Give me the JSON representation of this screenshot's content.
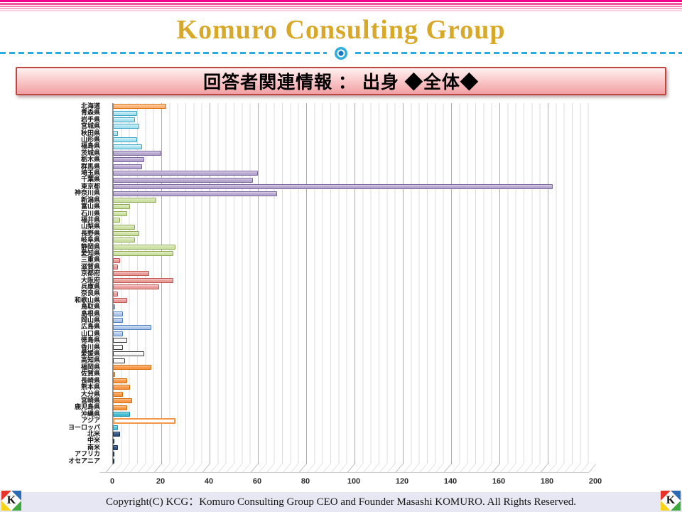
{
  "slide": {
    "title": "Komuro Consulting Group",
    "banner": "回答者関連情報 ： 出身 ◆全体◆",
    "footer": "Copyright(C)  KCG：Komuro Consulting Group  CEO and Founder  Masashi KOMURO. All Rights Reserved.",
    "logo_letter": "K"
  },
  "colors": {
    "title_gold": "#D8A828",
    "divider_cyan": "#2BABE2",
    "banner_border": "#BC4743",
    "stripes": [
      "#EC008C",
      "#F0549C",
      "#F47FB5",
      "#F8A8CE",
      "#FBD0E4"
    ],
    "footer_bg": "#E7E6F3"
  },
  "chart_data": {
    "type": "bar",
    "orientation": "horizontal",
    "title": "",
    "xlabel": "",
    "ylabel": "",
    "xlim": [
      0,
      200
    ],
    "x_ticks": [
      "0",
      "20",
      "40",
      "60",
      "80",
      "100",
      "120",
      "140",
      "160",
      "180",
      "200"
    ],
    "grid": "major every 20, minor every 3.33",
    "legend": "none",
    "groups": {
      "hokkaido": {
        "fill": "#FBB377",
        "light": "#FDDBB8",
        "border": "#E06F0E"
      },
      "tohoku": {
        "fill": "#A9E2F1",
        "light": "#DFF6FB",
        "border": "#38A3C1"
      },
      "kanto": {
        "fill": "#B5A6CE",
        "light": "#DCD2E8",
        "border": "#7A64A0"
      },
      "chubu": {
        "fill": "#CCE0A4",
        "light": "#EAF2D3",
        "border": "#8CA854"
      },
      "kinki": {
        "fill": "#E89B99",
        "light": "#F6CFCE",
        "border": "#C05552"
      },
      "chugoku": {
        "fill": "#ADC5E8",
        "light": "#D9E5F6",
        "border": "#4F81BD"
      },
      "shikoku": {
        "fill": "#F5F5F5",
        "light": "#FFFFFF",
        "border": "#3B3B3B"
      },
      "kyushu": {
        "fill": "#F79646",
        "light": "#FBC696",
        "border": "#D26A07"
      },
      "okinawa": {
        "fill": "#3FBCD2",
        "light": "#9ADFEA",
        "border": "#1F8FA8"
      },
      "asia": {
        "fill": "#FFFFFF",
        "light": "#FFFFFF",
        "border": "#F79646"
      },
      "europe": {
        "fill": "#4FC3DC",
        "light": "#A5E3EF",
        "border": "#2596B4"
      },
      "america": {
        "fill": "#30517F",
        "light": "#6D89AC",
        "border": "#1C3150"
      }
    },
    "categories": [
      {
        "label": "北海道",
        "value": 22,
        "group": "hokkaido"
      },
      {
        "label": "青森県",
        "value": 10,
        "group": "tohoku"
      },
      {
        "label": "岩手県",
        "value": 9,
        "group": "tohoku"
      },
      {
        "label": "宮城県",
        "value": 11,
        "group": "tohoku"
      },
      {
        "label": "秋田県",
        "value": 2,
        "group": "tohoku"
      },
      {
        "label": "山形県",
        "value": 10,
        "group": "tohoku"
      },
      {
        "label": "福島県",
        "value": 12,
        "group": "tohoku"
      },
      {
        "label": "茨城県",
        "value": 20,
        "group": "kanto"
      },
      {
        "label": "栃木県",
        "value": 13,
        "group": "kanto"
      },
      {
        "label": "群馬県",
        "value": 12,
        "group": "kanto"
      },
      {
        "label": "埼玉県",
        "value": 60,
        "group": "kanto"
      },
      {
        "label": "千葉県",
        "value": 58,
        "group": "kanto"
      },
      {
        "label": "東京都",
        "value": 182,
        "group": "kanto"
      },
      {
        "label": "神奈川県",
        "value": 68,
        "group": "kanto"
      },
      {
        "label": "新潟県",
        "value": 18,
        "group": "chubu"
      },
      {
        "label": "富山県",
        "value": 7,
        "group": "chubu"
      },
      {
        "label": "石川県",
        "value": 6,
        "group": "chubu"
      },
      {
        "label": "福井県",
        "value": 3,
        "group": "chubu"
      },
      {
        "label": "山梨県",
        "value": 9,
        "group": "chubu"
      },
      {
        "label": "長野県",
        "value": 11,
        "group": "chubu"
      },
      {
        "label": "岐阜県",
        "value": 9,
        "group": "chubu"
      },
      {
        "label": "静岡県",
        "value": 26,
        "group": "chubu"
      },
      {
        "label": "愛知県",
        "value": 25,
        "group": "chubu"
      },
      {
        "label": "三重県",
        "value": 3,
        "group": "kinki"
      },
      {
        "label": "滋賀県",
        "value": 2,
        "group": "kinki"
      },
      {
        "label": "京都府",
        "value": 15,
        "group": "kinki"
      },
      {
        "label": "大阪府",
        "value": 25,
        "group": "kinki"
      },
      {
        "label": "兵庫県",
        "value": 19,
        "group": "kinki"
      },
      {
        "label": "奈良県",
        "value": 2,
        "group": "kinki"
      },
      {
        "label": "和歌山県",
        "value": 6,
        "group": "kinki"
      },
      {
        "label": "鳥取県",
        "value": 1,
        "group": "chugoku"
      },
      {
        "label": "島根県",
        "value": 4,
        "group": "chugoku"
      },
      {
        "label": "岡山県",
        "value": 4,
        "group": "chugoku"
      },
      {
        "label": "広島県",
        "value": 16,
        "group": "chugoku"
      },
      {
        "label": "山口県",
        "value": 4,
        "group": "chugoku"
      },
      {
        "label": "徳島県",
        "value": 6,
        "group": "shikoku"
      },
      {
        "label": "香川県",
        "value": 4,
        "group": "shikoku"
      },
      {
        "label": "愛媛県",
        "value": 13,
        "group": "shikoku"
      },
      {
        "label": "高知県",
        "value": 5,
        "group": "shikoku"
      },
      {
        "label": "福岡県",
        "value": 16,
        "group": "kyushu"
      },
      {
        "label": "佐賀県",
        "value": 1,
        "group": "kyushu"
      },
      {
        "label": "長崎県",
        "value": 6,
        "group": "kyushu"
      },
      {
        "label": "熊本県",
        "value": 7,
        "group": "kyushu"
      },
      {
        "label": "大分県",
        "value": 4,
        "group": "kyushu"
      },
      {
        "label": "宮崎県",
        "value": 8,
        "group": "kyushu"
      },
      {
        "label": "鹿児島県",
        "value": 6,
        "group": "kyushu"
      },
      {
        "label": "沖縄県",
        "value": 7,
        "group": "okinawa"
      },
      {
        "label": "アジア",
        "value": 26,
        "group": "asia"
      },
      {
        "label": "ヨーロッパ",
        "value": 2,
        "group": "europe"
      },
      {
        "label": "北米",
        "value": 3,
        "group": "america"
      },
      {
        "label": "中米",
        "value": 0,
        "group": "america"
      },
      {
        "label": "南米",
        "value": 2,
        "group": "america"
      },
      {
        "label": "アフリカ",
        "value": 0,
        "group": "america"
      },
      {
        "label": "オセアニア",
        "value": 0,
        "group": "america"
      }
    ]
  }
}
